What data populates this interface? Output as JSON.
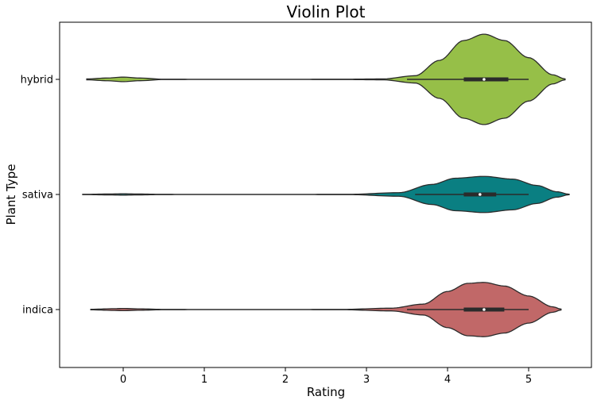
{
  "chart_data": {
    "type": "violin",
    "orientation": "horizontal",
    "title": "Violin Plot",
    "xlabel": "Rating",
    "ylabel": "Plant Type",
    "xlim": [
      -0.8,
      5.8
    ],
    "xticks": [
      0,
      1,
      2,
      3,
      4,
      5
    ],
    "xtick_labels": [
      "0",
      "1",
      "2",
      "3",
      "4",
      "5"
    ],
    "grid": false,
    "legend": "none",
    "categories": [
      "hybrid",
      "sativa",
      "indica"
    ],
    "series": [
      {
        "name": "hybrid",
        "color": "#96bf48",
        "range": [
          -0.45,
          5.45
        ],
        "q1": 4.2,
        "median": 4.45,
        "q3": 4.75,
        "whisker_low": 3.5,
        "whisker_high": 5.0,
        "density_profile": [
          [
            -0.45,
            0.01
          ],
          [
            -0.2,
            0.03
          ],
          [
            0.0,
            0.05
          ],
          [
            0.2,
            0.03
          ],
          [
            0.5,
            0.004
          ],
          [
            1.0,
            0.002
          ],
          [
            2.0,
            0.002
          ],
          [
            2.7,
            0.004
          ],
          [
            3.2,
            0.01
          ],
          [
            3.6,
            0.08
          ],
          [
            3.9,
            0.42
          ],
          [
            4.2,
            0.86
          ],
          [
            4.45,
            1.0
          ],
          [
            4.7,
            0.86
          ],
          [
            5.0,
            0.48
          ],
          [
            5.3,
            0.1
          ],
          [
            5.45,
            0.01
          ]
        ]
      },
      {
        "name": "sativa",
        "color": "#0a7f82",
        "range": [
          -0.5,
          5.5
        ],
        "q1": 4.2,
        "median": 4.4,
        "q3": 4.6,
        "whisker_low": 3.6,
        "whisker_high": 5.0,
        "density_profile": [
          [
            -0.5,
            0.003
          ],
          [
            -0.2,
            0.01
          ],
          [
            0.0,
            0.015
          ],
          [
            0.2,
            0.01
          ],
          [
            0.5,
            0.003
          ],
          [
            1.0,
            0.002
          ],
          [
            2.0,
            0.002
          ],
          [
            2.8,
            0.004
          ],
          [
            3.4,
            0.04
          ],
          [
            3.8,
            0.22
          ],
          [
            4.1,
            0.36
          ],
          [
            4.45,
            0.4
          ],
          [
            4.8,
            0.34
          ],
          [
            5.1,
            0.2
          ],
          [
            5.35,
            0.06
          ],
          [
            5.5,
            0.005
          ]
        ]
      },
      {
        "name": "indica",
        "color": "#c16868",
        "range": [
          -0.4,
          5.4
        ],
        "q1": 4.2,
        "median": 4.45,
        "q3": 4.7,
        "whisker_low": 3.5,
        "whisker_high": 5.0,
        "density_profile": [
          [
            -0.4,
            0.006
          ],
          [
            -0.1,
            0.02
          ],
          [
            0.0,
            0.025
          ],
          [
            0.2,
            0.015
          ],
          [
            0.5,
            0.004
          ],
          [
            1.0,
            0.002
          ],
          [
            2.0,
            0.002
          ],
          [
            2.7,
            0.004
          ],
          [
            3.3,
            0.03
          ],
          [
            3.7,
            0.12
          ],
          [
            4.0,
            0.4
          ],
          [
            4.25,
            0.58
          ],
          [
            4.45,
            0.6
          ],
          [
            4.7,
            0.52
          ],
          [
            5.0,
            0.3
          ],
          [
            5.3,
            0.06
          ],
          [
            5.4,
            0.01
          ]
        ]
      }
    ]
  }
}
